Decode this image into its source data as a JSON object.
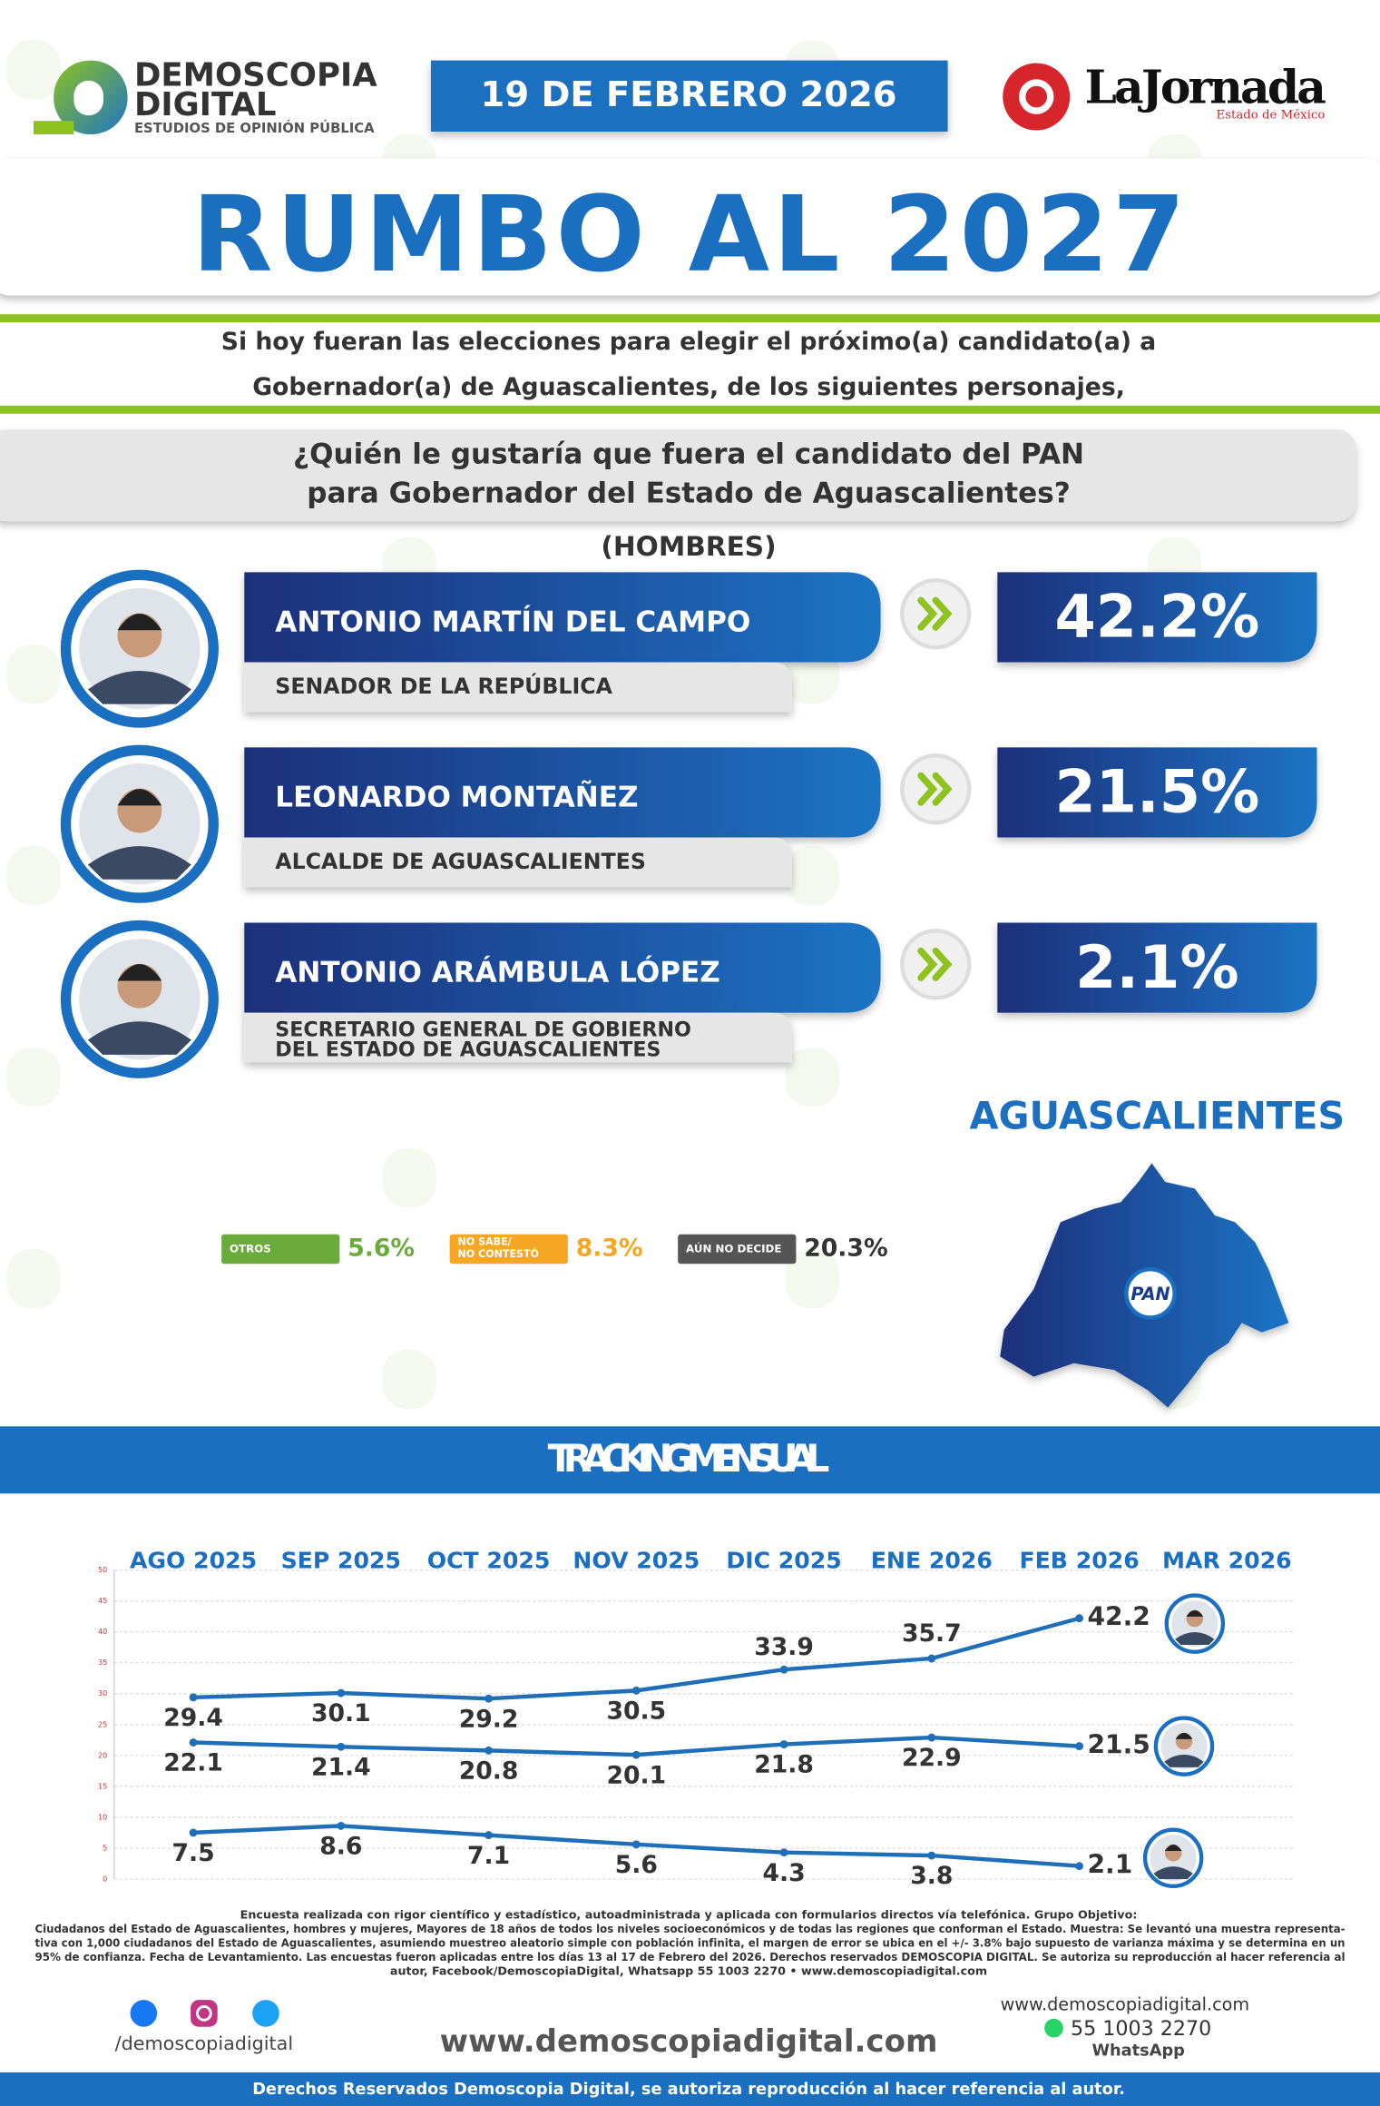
{
  "header": {
    "brand": "DEMOSCOPIA",
    "brand2": "DIGITAL",
    "tagline": "ESTUDIOS DE OPINIÓN PÚBLICA",
    "date": "19 DE FEBRERO 2026",
    "partner": "LaJornada",
    "partner_sub": "Estado de México"
  },
  "title": "RUMBO AL 2027",
  "intro": [
    "Si hoy fueran las elecciones para elegir el próximo(a) candidato(a) a",
    "Gobernador(a) de Aguascalientes, de los siguientes personajes,"
  ],
  "question": [
    "¿Quién le gustaría que fuera el candidato del PAN",
    "para Gobernador del Estado de Aguascalientes?"
  ],
  "group": "(HOMBRES)",
  "candidates": [
    {
      "name": "ANTONIO MARTÍN DEL CAMPO",
      "role": [
        "SENADOR DE LA REPÚBLICA"
      ],
      "result": "42.2%"
    },
    {
      "name": "LEONARDO MONTAÑEZ",
      "role": [
        "ALCALDE DE AGUASCALIENTES"
      ],
      "result": "21.5%"
    },
    {
      "name": "ANTONIO ARÁMBULA LÓPEZ",
      "role": [
        "SECRETARIO GENERAL DE GOBIERNO",
        "DEL ESTADO DE AGUASCALIENTES"
      ],
      "result": "2.1%"
    }
  ],
  "others": [
    {
      "label": [
        "OTROS"
      ],
      "result": "5.6%",
      "color": "#6aab3c"
    },
    {
      "label": [
        "NO SABE/",
        "NO CONTESTÓ"
      ],
      "result": "8.3%",
      "color": "#f5a623"
    },
    {
      "label": [
        "AÚN NO DECIDE"
      ],
      "result": "20.3%",
      "color": "#555555"
    }
  ],
  "map": {
    "state": "AGUASCALIENTES",
    "badge": "PAN"
  },
  "tracking": {
    "type": "line",
    "title": "TRACKING MENSUAL",
    "categories": [
      "AGO 2025",
      "SEP 2025",
      "OCT 2025",
      "NOV 2025",
      "DIC 2025",
      "ENE 2026",
      "FEB 2026",
      "MAR 2026"
    ],
    "ylim": [
      0,
      50
    ],
    "yticks": [
      0,
      5,
      10,
      15,
      20,
      25,
      30,
      35,
      40,
      45,
      50
    ],
    "grid": true,
    "series": [
      {
        "color": "#1f6fb8",
        "values": [
          29.4,
          30.1,
          29.2,
          30.5,
          33.9,
          35.7,
          42.2,
          null
        ]
      },
      {
        "color": "#1f6fb8",
        "values": [
          22.1,
          21.4,
          20.8,
          20.1,
          21.8,
          22.9,
          21.5,
          null
        ]
      },
      {
        "color": "#1f6fb8",
        "values": [
          7.5,
          8.6,
          7.1,
          5.6,
          4.3,
          3.8,
          2.1,
          null
        ]
      }
    ]
  },
  "footer": {
    "methodology": [
      "Encuesta realizada con rigor científico y estadístico, autoadministrada y aplicada con formularios directos vía telefónica. Grupo Objetivo:",
      "Ciudadanos del Estado de Aguascalientes, hombres y mujeres, Mayores de 18 años de todos los niveles socioeconómicos y de todas las regiones que conforman el Estado. Muestra: Se levantó una muestra representa-",
      "tiva con 1,000 ciudadanos del Estado de Aguascalientes, asumiendo muestreo aleatorio simple con población infinita, el margen de error se ubica en el +/- 3.8% bajo supuesto de varianza máxima y se determina en un",
      "95% de confianza. Fecha de Levantamiento. Las encuestas fueron aplicadas entre los días 13 al 17 de Febrero del 2026. Derechos reservados DEMOSCOPIA DIGITAL. Se autoriza su reproducción al hacer referencia al",
      "autor, Facebook/DemoscopiaDigital, Whatsapp 55 1003 2270 • www.demoscopiadigital.com"
    ],
    "social": "/demoscopiadigital",
    "website": "www.demoscopiadigital.com",
    "contact_site": "www.demoscopiadigital.com",
    "phone": "55 1003 2270",
    "phone_app": "WhatsApp",
    "copyright": "Derechos Reservados Demoscopia Digital, se autoriza reproducción al hacer referencia al autor."
  }
}
